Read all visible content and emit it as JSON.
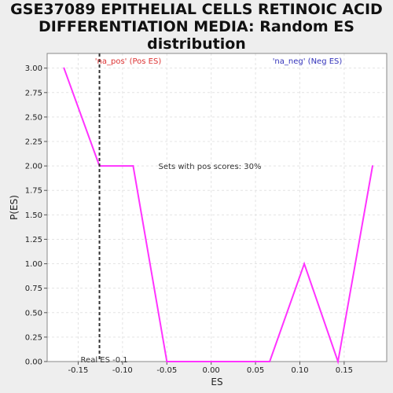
{
  "chart_data": {
    "type": "line",
    "title_lines": [
      "GSE37089 EPITHELIAL CELLS RETINOIC ACID",
      "DIFFERENTIATION MEDIA: Random ES",
      "distribution"
    ],
    "xlabel": "ES",
    "ylabel": "P(ES)",
    "xlim": [
      -0.185,
      0.198
    ],
    "ylim": [
      0,
      3.15
    ],
    "xticks": [
      -0.15,
      -0.1,
      -0.05,
      0.0,
      0.05,
      0.1,
      0.15
    ],
    "xtick_labels": [
      "-0.15",
      "-0.10",
      "-0.05",
      "0.00",
      "0.05",
      "0.10",
      "0.15"
    ],
    "yticks": [
      0,
      0.25,
      0.5,
      0.75,
      1.0,
      1.25,
      1.5,
      1.75,
      2.0,
      2.25,
      2.5,
      2.75,
      3.0
    ],
    "ytick_labels": [
      "0.00",
      "0.25",
      "0.50",
      "0.75",
      "1.00",
      "1.25",
      "1.50",
      "1.75",
      "2.00",
      "2.25",
      "2.50",
      "2.75",
      "3.00"
    ],
    "grid": true,
    "series": [
      {
        "color": "#ff33ff",
        "x": [
          -0.166,
          -0.126,
          -0.088,
          -0.05,
          0.066,
          0.105,
          0.143,
          0.182
        ],
        "y": [
          3.0,
          2.0,
          2.0,
          0.0,
          0.0,
          1.0,
          0.0,
          2.0
        ]
      }
    ],
    "real_es": {
      "x": -0.126,
      "label": "Real ES -0.1"
    },
    "annotations": {
      "pos": {
        "text": "'na_pos' (Pos ES)",
        "color": "#dd3333"
      },
      "neg": {
        "text": "'na_neg' (Neg ES)",
        "color": "#3333bb"
      },
      "pos_scores": {
        "text": "Sets with pos scores: 30%",
        "color": "#333333"
      }
    }
  }
}
